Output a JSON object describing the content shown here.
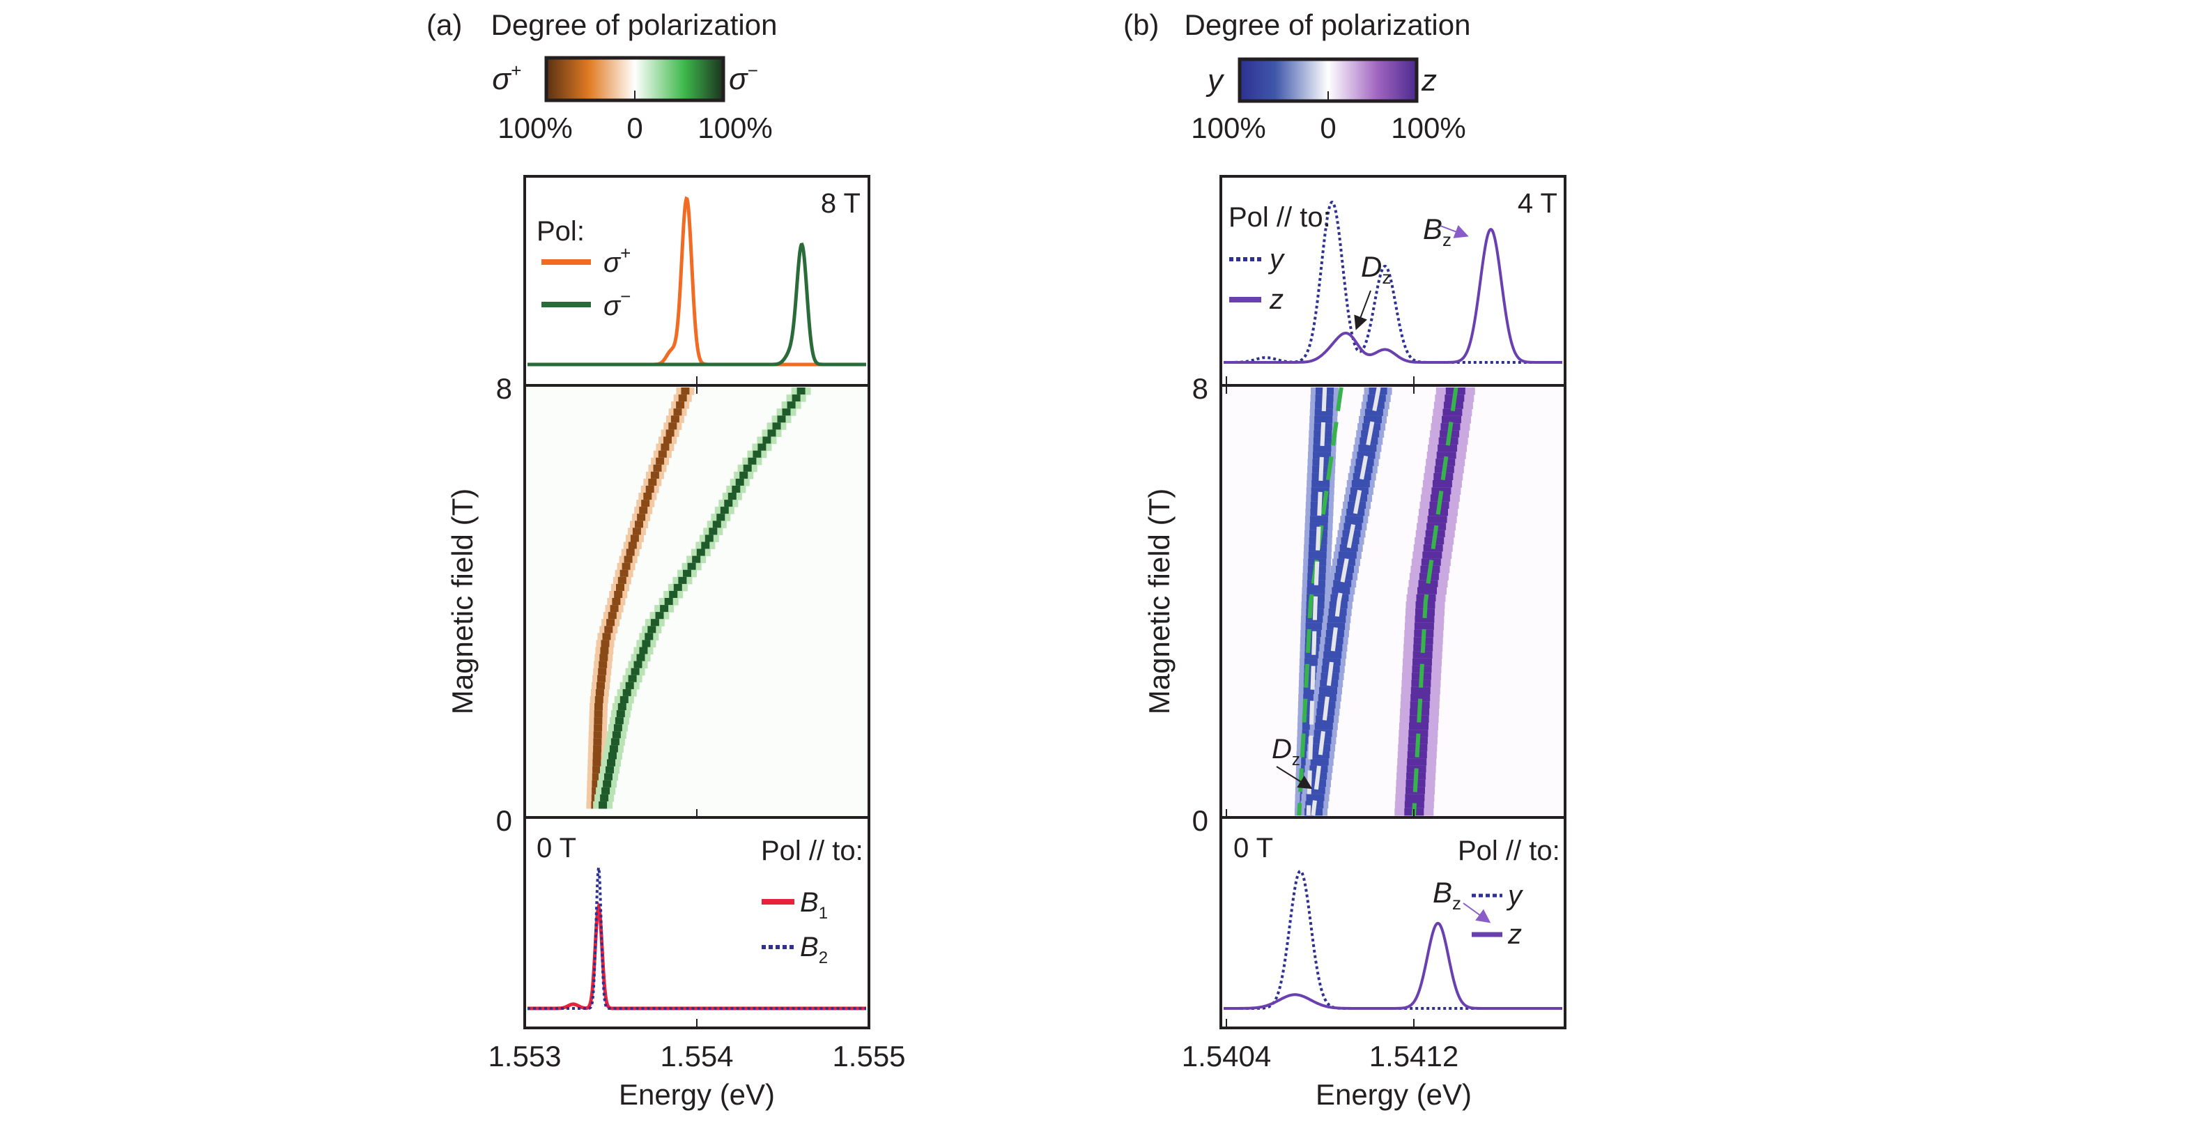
{
  "figure": {
    "panels": [
      {
        "id": "a",
        "label": "(a)",
        "colorbar": {
          "title": "Degree of polarization",
          "left_label": "σ",
          "left_sup": "+",
          "right_label": "σ",
          "right_sup": "−",
          "tick_labels": [
            "100%",
            "0",
            "100%"
          ],
          "stops": [
            "#5a3114",
            "#e07b22",
            "#ffffff",
            "#3db84a",
            "#1c3320"
          ]
        },
        "top_spectrum": {
          "field_label": "8 T",
          "legend_title": "Pol:",
          "legend": [
            {
              "label": "σ",
              "sup": "+",
              "color": "#f26b22",
              "style": "solid"
            },
            {
              "label": "σ",
              "sup": "−",
              "color": "#2a6b3a",
              "style": "solid"
            }
          ]
        },
        "map": {
          "ylabel": "Magnetic field (T)",
          "yticks": [
            "0",
            "8"
          ]
        },
        "bottom_spectrum": {
          "field_label": "0 T",
          "legend_title": "Pol // to:",
          "legend": [
            {
              "label": "B",
              "sub": "1",
              "color": "#e8223a",
              "style": "solid"
            },
            {
              "label": "B",
              "sub": "2",
              "color": "#2e3192",
              "style": "dotted"
            }
          ]
        },
        "xaxis": {
          "label": "Energy (eV)",
          "ticks": [
            "1.553",
            "1.554",
            "1.555"
          ]
        }
      },
      {
        "id": "b",
        "label": "(b)",
        "colorbar": {
          "title": "Degree of polarization",
          "left_label": "y",
          "right_label": "z",
          "tick_labels": [
            "100%",
            "0",
            "100%"
          ],
          "stops": [
            "#2e3192",
            "#3f57aa",
            "#ffffff",
            "#a064c0",
            "#4b2a8f"
          ]
        },
        "top_spectrum": {
          "field_label": "4 T",
          "legend_title": "Pol // to:",
          "legend": [
            {
              "label": "y",
              "color": "#2e3192",
              "style": "dotted"
            },
            {
              "label": "z",
              "color": "#6a3fb0",
              "style": "solid"
            }
          ],
          "annotations": [
            {
              "label": "D",
              "sub": "z"
            },
            {
              "label": "B",
              "sub": "z"
            }
          ]
        },
        "map": {
          "ylabel": "Magnetic field (T)",
          "yticks": [
            "0",
            "8"
          ],
          "annotation": {
            "label": "D",
            "sub": "z"
          }
        },
        "bottom_spectrum": {
          "field_label": "0 T",
          "legend_title": "Pol // to:",
          "legend": [
            {
              "label": "y",
              "color": "#2e3192",
              "style": "dotted"
            },
            {
              "label": "z",
              "color": "#6a3fb0",
              "style": "solid"
            }
          ],
          "annotation": {
            "label": "B",
            "sub": "z"
          }
        },
        "xaxis": {
          "label": "Energy (eV)",
          "ticks": [
            "1.5404",
            "1.5412"
          ]
        }
      }
    ]
  },
  "chart_data": [
    {
      "type": "line",
      "panel": "a-top",
      "title": "8 T",
      "xlabel": "Energy (eV)",
      "xlim": [
        1.553,
        1.555
      ],
      "series": [
        {
          "name": "σ+",
          "peaks": [
            {
              "x": 1.55394,
              "height": 1.0,
              "width": 3e-05
            },
            {
              "x": 1.55385,
              "height": 0.08,
              "width": 3e-05
            }
          ]
        },
        {
          "name": "σ−",
          "peaks": [
            {
              "x": 1.55462,
              "height": 0.72,
              "width": 3e-05
            },
            {
              "x": 1.55455,
              "height": 0.06,
              "width": 3e-05
            }
          ]
        }
      ]
    },
    {
      "type": "heatmap",
      "panel": "a-map",
      "xlabel": "Energy (eV)",
      "ylabel": "Magnetic field (T)",
      "xlim": [
        1.553,
        1.555
      ],
      "ylim": [
        0,
        8
      ],
      "series": [
        {
          "name": "σ+ branch",
          "points": [
            [
              1.55341,
              0
            ],
            [
              1.55343,
              2
            ],
            [
              1.55347,
              3.2
            ],
            [
              1.55358,
              4.5
            ],
            [
              1.55372,
              6
            ],
            [
              1.55394,
              8
            ]
          ]
        },
        {
          "name": "σ− branch",
          "points": [
            [
              1.55345,
              0
            ],
            [
              1.55357,
              2
            ],
            [
              1.55375,
              3.5
            ],
            [
              1.55405,
              5
            ],
            [
              1.5543,
              6.5
            ],
            [
              1.55462,
              8
            ]
          ]
        }
      ]
    },
    {
      "type": "line",
      "panel": "a-bottom",
      "title": "0 T",
      "xlabel": "Energy (eV)",
      "xlim": [
        1.553,
        1.555
      ],
      "series": [
        {
          "name": "B1",
          "peaks": [
            {
              "x": 1.55342,
              "height": 0.72,
              "width": 2e-05
            },
            {
              "x": 1.55327,
              "height": 0.03,
              "width": 3e-05
            }
          ]
        },
        {
          "name": "B2",
          "peaks": [
            {
              "x": 1.55342,
              "height": 1.0,
              "width": 1.5e-05
            }
          ]
        }
      ]
    },
    {
      "type": "line",
      "panel": "b-top",
      "title": "4 T",
      "xlabel": "Energy (eV)",
      "xlim": [
        1.54039,
        1.54167
      ],
      "series": [
        {
          "name": "y",
          "peaks": [
            {
              "x": 1.5408,
              "height": 1.0,
              "width": 4e-05
            },
            {
              "x": 1.541,
              "height": 0.6,
              "width": 4e-05
            },
            {
              "x": 1.54055,
              "height": 0.03,
              "width": 4e-05
            }
          ]
        },
        {
          "name": "z",
          "peaks": [
            {
              "x": 1.5408,
              "height": 0.06,
              "width": 4e-05
            },
            {
              "x": 1.54086,
              "height": 0.16,
              "width": 4e-05
            },
            {
              "x": 1.541,
              "height": 0.08,
              "width": 4e-05
            },
            {
              "x": 1.5414,
              "height": 0.83,
              "width": 4e-05
            }
          ]
        }
      ]
    },
    {
      "type": "heatmap",
      "panel": "b-map",
      "xlabel": "Energy (eV)",
      "ylabel": "Magnetic field (T)",
      "xlim": [
        1.54039,
        1.54167
      ],
      "ylim": [
        0,
        8
      ],
      "series": [
        {
          "name": "y branch 1",
          "points": [
            [
              1.54075,
              0
            ],
            [
              1.54078,
              4
            ],
            [
              1.54082,
              8
            ]
          ]
        },
        {
          "name": "y branch 2",
          "points": [
            [
              1.54077,
              0
            ],
            [
              1.54088,
              4
            ],
            [
              1.54105,
              8
            ]
          ]
        },
        {
          "name": "Dz (fit)",
          "points": [
            [
              1.54071,
              0
            ],
            [
              1.54076,
              4
            ],
            [
              1.54089,
              8
            ]
          ]
        },
        {
          "name": "Bz (fit)",
          "points": [
            [
              1.5412,
              0
            ],
            [
              1.54125,
              4
            ],
            [
              1.54138,
              8
            ]
          ]
        }
      ]
    },
    {
      "type": "line",
      "panel": "b-bottom",
      "title": "0 T",
      "xlabel": "Energy (eV)",
      "xlim": [
        1.54039,
        1.54167
      ],
      "series": [
        {
          "name": "y",
          "peaks": [
            {
              "x": 1.54068,
              "height": 1.0,
              "width": 4e-05
            }
          ]
        },
        {
          "name": "z",
          "peaks": [
            {
              "x": 1.54066,
              "height": 0.1,
              "width": 6e-05
            },
            {
              "x": 1.5412,
              "height": 0.62,
              "width": 4e-05
            }
          ]
        }
      ]
    }
  ]
}
